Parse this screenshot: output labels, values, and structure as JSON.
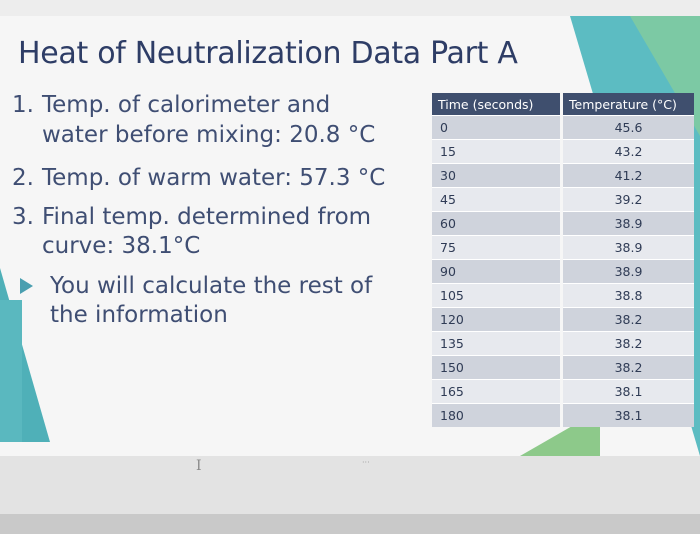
{
  "slide": {
    "title": "Heat of Neutralization Data Part A",
    "items": [
      {
        "num": "1.",
        "line1": "Temp. of calorimeter and",
        "line2": "water before mixing: 20.8 °C"
      },
      {
        "num": "2.",
        "line1": "Temp. of warm water: 57.3 °C"
      },
      {
        "num": "3.",
        "line1": "Final temp. determined from",
        "line2": "curve: 38.1°C"
      }
    ],
    "bullet": {
      "line1": "You will calculate the rest of",
      "line2": "the information"
    }
  },
  "table": {
    "headers": [
      "Time (seconds)",
      "Temperature (°C)"
    ],
    "rows": [
      [
        "0",
        "45.6"
      ],
      [
        "15",
        "43.2"
      ],
      [
        "30",
        "41.2"
      ],
      [
        "45",
        "39.2"
      ],
      [
        "60",
        "38.9"
      ],
      [
        "75",
        "38.9"
      ],
      [
        "90",
        "38.9"
      ],
      [
        "105",
        "38.8"
      ],
      [
        "120",
        "38.2"
      ],
      [
        "135",
        "38.2"
      ],
      [
        "150",
        "38.2"
      ],
      [
        "165",
        "38.1"
      ],
      [
        "180",
        "38.1"
      ]
    ]
  },
  "colors": {
    "title": "#2e3d66",
    "header_bg": "#3f4f6e",
    "accent": "#5cbcc2"
  }
}
